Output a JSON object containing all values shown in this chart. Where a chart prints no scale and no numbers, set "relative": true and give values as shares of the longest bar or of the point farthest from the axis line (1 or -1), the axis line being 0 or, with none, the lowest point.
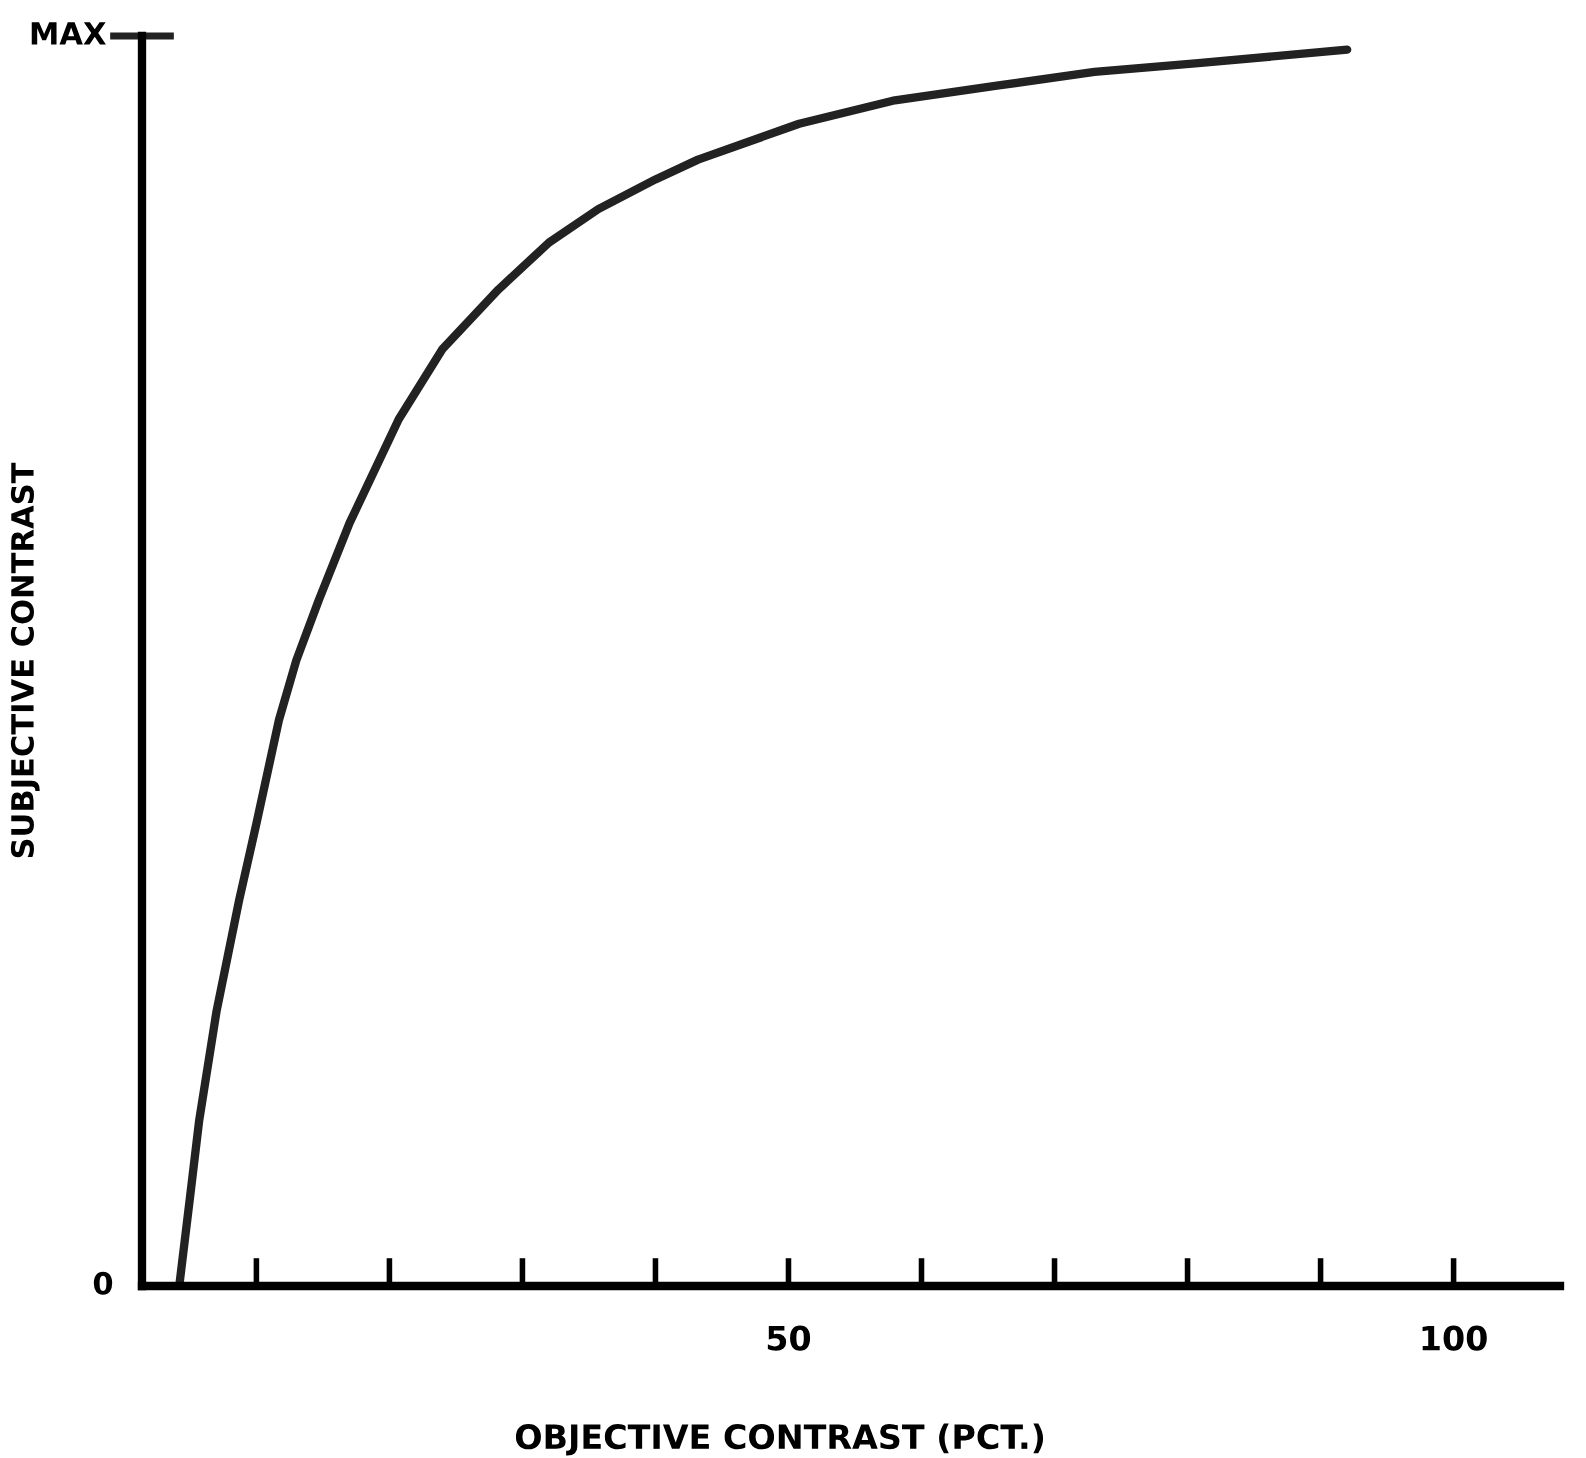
{
  "chart_data": {
    "type": "line",
    "relative": true,
    "xlabel": "OBJECTIVE CONTRAST (PCT.)",
    "ylabel": "SUBJECTIVE CONTRAST",
    "x": [
      4.2,
      5,
      5.7,
      7,
      8.7,
      10,
      11.7,
      13,
      14.7,
      17,
      20.7,
      24,
      28.2,
      32,
      35.7,
      40,
      43.2,
      50.8,
      58,
      65.8,
      73,
      80.8,
      92
    ],
    "series": [
      {
        "color": "#222222",
        "values": [
          0,
          0.071,
          0.134,
          0.222,
          0.312,
          0.374,
          0.458,
          0.506,
          0.555,
          0.617,
          0.701,
          0.758,
          0.806,
          0.844,
          0.871,
          0.895,
          0.911,
          0.94,
          0.959,
          0.971,
          0.982,
          0.989,
          1
        ]
      }
    ],
    "annotations": [
      "0",
      "MAX"
    ],
    "xlim": [
      1.4,
      108
    ],
    "xticks": [
      {
        "value": 10,
        "label": null
      },
      {
        "value": 20,
        "label": null
      },
      {
        "value": 30,
        "label": null
      },
      {
        "value": 40,
        "label": null
      },
      50,
      {
        "value": 60,
        "label": null
      },
      {
        "value": 70,
        "label": null
      },
      {
        "value": 80,
        "label": null
      },
      {
        "value": 90,
        "label": null
      },
      100
    ],
    "grid": false,
    "legend": false,
    "marker": "none",
    "line_style": "solid"
  }
}
